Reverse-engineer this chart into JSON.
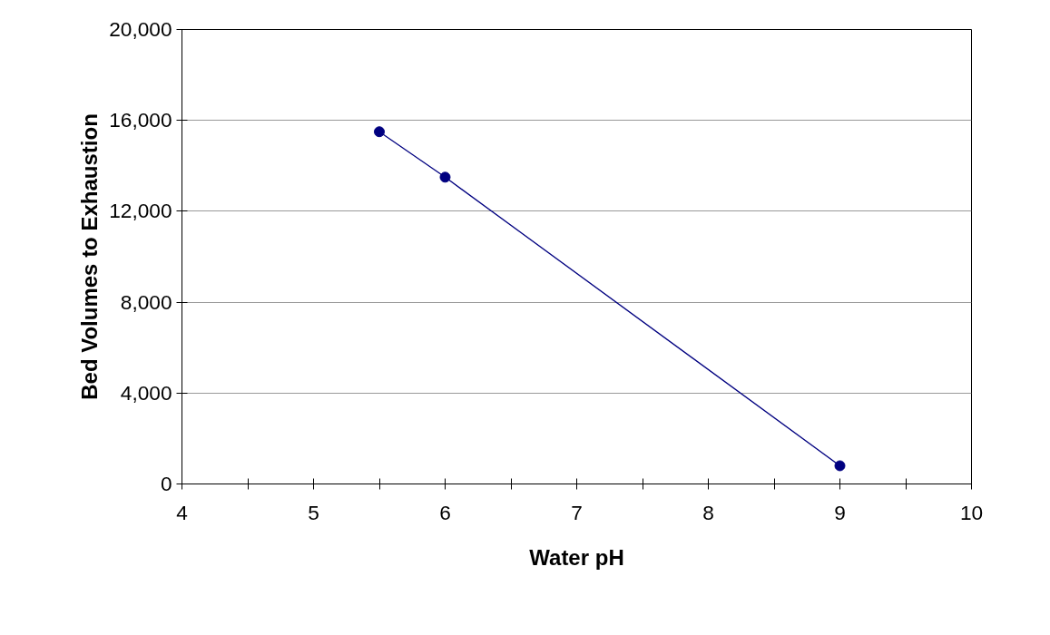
{
  "chart_data": {
    "type": "line",
    "xlabel": "Water pH",
    "ylabel": "Bed Volumes to Exhaustion",
    "x": [
      5.5,
      6,
      9
    ],
    "series": [
      {
        "color": "#000080",
        "values": [
          15500,
          13500,
          800
        ]
      }
    ],
    "xlim": [
      4,
      10
    ],
    "ylim": [
      0,
      20000
    ],
    "xticks": [
      4,
      {
        "value": 4.5,
        "label": null
      },
      5,
      {
        "value": 5.5,
        "label": null
      },
      6,
      {
        "value": 6.5,
        "label": null
      },
      7,
      {
        "value": 7.5,
        "label": null
      },
      8,
      {
        "value": 8.5,
        "label": null
      },
      9,
      {
        "value": 9.5,
        "label": null
      },
      10
    ],
    "yticks": [
      {
        "value": 0,
        "label": "0"
      },
      {
        "value": 4000,
        "label": "4,000"
      },
      {
        "value": 8000,
        "label": "8,000"
      },
      {
        "value": 12000,
        "label": "12,000"
      },
      {
        "value": 16000,
        "label": "16,000"
      },
      {
        "value": 20000,
        "label": "20,000"
      }
    ],
    "grid": "y",
    "marker": "circle",
    "line_style": "solid"
  }
}
